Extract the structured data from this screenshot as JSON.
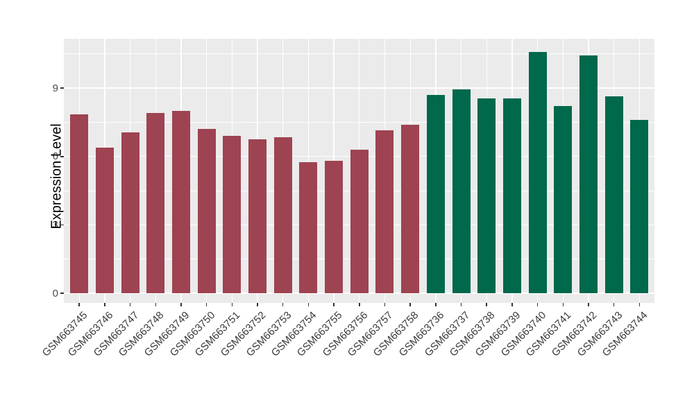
{
  "style": {
    "figure_background": "#FFFFFF",
    "panel_background": "#EBEBEB",
    "gridline_color": "#FFFFFF",
    "axis_text_color": "#4A4A4A",
    "axis_title_color": "#000000",
    "group_a_color": "#9E4352",
    "group_b_color": "#00684B"
  },
  "chart_data": {
    "type": "bar",
    "title": "",
    "xlabel": "",
    "ylabel": "Expression Level",
    "ylim": [
      0,
      11.16
    ],
    "yticks": [
      0,
      3,
      6,
      9
    ],
    "minor_yticks": [
      1.5,
      4.5,
      7.5,
      10.5
    ],
    "grid": true,
    "legend_position": "none",
    "palette": {
      "group_a": "#9E4352",
      "group_b": "#00684B"
    },
    "bars": [
      {
        "label": "GSM663745",
        "value": 7.85,
        "group": "group_a"
      },
      {
        "label": "GSM663746",
        "value": 6.4,
        "group": "group_a"
      },
      {
        "label": "GSM663747",
        "value": 7.05,
        "group": "group_a"
      },
      {
        "label": "GSM663748",
        "value": 7.9,
        "group": "group_a"
      },
      {
        "label": "GSM663749",
        "value": 8.0,
        "group": "group_a"
      },
      {
        "label": "GSM663750",
        "value": 7.2,
        "group": "group_a"
      },
      {
        "label": "GSM663751",
        "value": 6.9,
        "group": "group_a"
      },
      {
        "label": "GSM663752",
        "value": 6.75,
        "group": "group_a"
      },
      {
        "label": "GSM663753",
        "value": 6.85,
        "group": "group_a"
      },
      {
        "label": "GSM663754",
        "value": 5.75,
        "group": "group_a"
      },
      {
        "label": "GSM663755",
        "value": 5.8,
        "group": "group_a"
      },
      {
        "label": "GSM663756",
        "value": 6.3,
        "group": "group_a"
      },
      {
        "label": "GSM663757",
        "value": 7.15,
        "group": "group_a"
      },
      {
        "label": "GSM663758",
        "value": 7.4,
        "group": "group_a"
      },
      {
        "label": "GSM663736",
        "value": 8.7,
        "group": "group_b"
      },
      {
        "label": "GSM663737",
        "value": 8.95,
        "group": "group_b"
      },
      {
        "label": "GSM663738",
        "value": 8.55,
        "group": "group_b"
      },
      {
        "label": "GSM663739",
        "value": 8.55,
        "group": "group_b"
      },
      {
        "label": "GSM663740",
        "value": 10.6,
        "group": "group_b"
      },
      {
        "label": "GSM663741",
        "value": 8.2,
        "group": "group_b"
      },
      {
        "label": "GSM663742",
        "value": 10.45,
        "group": "group_b"
      },
      {
        "label": "GSM663743",
        "value": 8.65,
        "group": "group_b"
      },
      {
        "label": "GSM663744",
        "value": 7.6,
        "group": "group_b"
      }
    ]
  }
}
